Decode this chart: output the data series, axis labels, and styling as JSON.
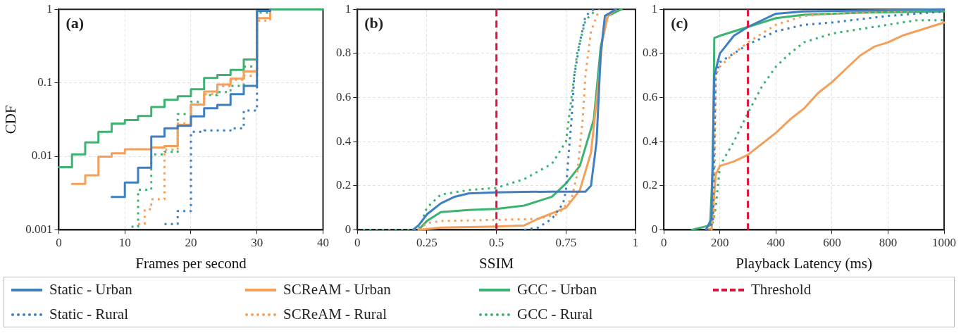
{
  "chart_data": [
    {
      "type": "step",
      "xlabel": "Frames per second",
      "ylabel": "CDF",
      "annotations": [
        "(a)"
      ],
      "log": "y",
      "grid": true,
      "legend": "bottom",
      "xlim": [
        0,
        40
      ],
      "xticks": [
        0,
        10,
        20,
        30,
        40
      ],
      "ylim": [
        0.001,
        1
      ],
      "yticks": [
        0.001,
        0.01,
        0.1,
        1
      ],
      "series": [
        {
          "name": "Static - Urban",
          "color": "#3f7fbf",
          "line_style": "solid",
          "x": [
            8,
            10,
            12,
            14,
            16,
            18,
            20,
            22,
            24,
            26,
            28,
            30,
            32
          ],
          "values": [
            0.0028,
            0.0044,
            0.007,
            0.0185,
            0.024,
            0.026,
            0.035,
            0.045,
            0.05,
            0.07,
            0.091,
            0.95,
            1
          ]
        },
        {
          "name": "Static - Rural",
          "color": "#3f7fbf",
          "line_style": "dotted",
          "x": [
            16,
            18,
            20,
            22,
            26,
            28,
            30,
            32
          ],
          "values": [
            0.0012,
            0.0018,
            0.0215,
            0.0225,
            0.024,
            0.042,
            0.95,
            1
          ]
        },
        {
          "name": "SCReAM - Urban",
          "color": "#f5a05a",
          "line_style": "solid",
          "x": [
            2,
            4,
            6,
            8,
            10,
            14,
            16,
            18,
            20,
            22,
            24,
            26,
            28,
            30,
            32
          ],
          "values": [
            0.0042,
            0.0055,
            0.0099,
            0.011,
            0.0125,
            0.0132,
            0.0138,
            0.0269,
            0.0505,
            0.076,
            0.095,
            0.114,
            0.143,
            0.76,
            1
          ]
        },
        {
          "name": "SCReAM - Rural",
          "color": "#f5a05a",
          "line_style": "dotted",
          "x": [
            12,
            13,
            14,
            16,
            18,
            20,
            22,
            24,
            26,
            28,
            30,
            32
          ],
          "values": [
            0.0012,
            0.0019,
            0.0026,
            0.0123,
            0.028,
            0.05,
            0.07,
            0.09,
            0.11,
            0.125,
            0.7,
            1
          ]
        },
        {
          "name": "GCC - Urban",
          "color": "#3cb371",
          "line_style": "solid",
          "x": [
            0,
            2,
            4,
            6,
            8,
            10,
            12,
            14,
            16,
            18,
            20,
            22,
            24,
            26,
            28,
            30,
            32,
            40
          ],
          "values": [
            0.0071,
            0.0106,
            0.0155,
            0.0215,
            0.0279,
            0.0312,
            0.0353,
            0.0469,
            0.0586,
            0.0655,
            0.0818,
            0.116,
            0.128,
            0.15,
            0.207,
            0.95,
            1,
            1
          ]
        },
        {
          "name": "GCC - Rural",
          "color": "#3cb371",
          "line_style": "dotted",
          "x": [
            11,
            12,
            14,
            16,
            18,
            20,
            22,
            24,
            26,
            28,
            30,
            32
          ],
          "values": [
            0.0011,
            0.0035,
            0.0106,
            0.0115,
            0.0375,
            0.055,
            0.068,
            0.075,
            0.091,
            0.166,
            0.9,
            1
          ]
        }
      ]
    },
    {
      "type": "line",
      "xlabel": "SSIM",
      "annotations": [
        "(b)"
      ],
      "grid": true,
      "xlim": [
        0,
        1
      ],
      "xticks": [
        0,
        0.25,
        0.5,
        0.75,
        1
      ],
      "ylim": [
        0,
        1
      ],
      "yticks": [
        0,
        0.2,
        0.4,
        0.6,
        0.8,
        1
      ],
      "ref_lines": [
        {
          "axis": "x",
          "value": 0.5,
          "label": "Threshold",
          "color": "#dc143c",
          "line_style": "dashed"
        }
      ],
      "series": [
        {
          "color": "#3f7fbf",
          "line_style": "solid",
          "x": [
            0.2,
            0.22,
            0.25,
            0.3,
            0.35,
            0.4,
            0.5,
            0.6,
            0.7,
            0.82,
            0.84,
            0.86,
            0.875,
            0.89,
            0.93
          ],
          "values": [
            0,
            0.02,
            0.07,
            0.12,
            0.15,
            0.165,
            0.17,
            0.172,
            0.173,
            0.173,
            0.2,
            0.4,
            0.8,
            0.97,
            1
          ]
        },
        {
          "color": "#3f7fbf",
          "line_style": "dotted",
          "x": [
            0.6,
            0.65,
            0.7,
            0.74,
            0.75,
            0.76,
            0.77,
            0.78,
            0.8,
            0.82,
            0.85
          ],
          "values": [
            0,
            0.01,
            0.05,
            0.12,
            0.18,
            0.35,
            0.5,
            0.7,
            0.85,
            0.97,
            1
          ]
        },
        {
          "color": "#f5a05a",
          "line_style": "solid",
          "x": [
            0.22,
            0.3,
            0.5,
            0.6,
            0.65,
            0.75,
            0.8,
            0.84,
            0.87,
            0.88,
            0.9,
            0.93
          ],
          "values": [
            0,
            0.01,
            0.015,
            0.02,
            0.05,
            0.1,
            0.18,
            0.35,
            0.7,
            0.85,
            0.97,
            1
          ]
        },
        {
          "color": "#f5a05a",
          "line_style": "dotted",
          "x": [
            0.22,
            0.25,
            0.3,
            0.5,
            0.65,
            0.72,
            0.77,
            0.79,
            0.81,
            0.82,
            0.84,
            0.87
          ],
          "values": [
            0,
            0.03,
            0.04,
            0.045,
            0.05,
            0.07,
            0.14,
            0.25,
            0.5,
            0.7,
            0.9,
            1
          ]
        },
        {
          "color": "#3cb371",
          "line_style": "solid",
          "x": [
            0.22,
            0.25,
            0.3,
            0.4,
            0.5,
            0.6,
            0.7,
            0.75,
            0.8,
            0.85,
            0.875,
            0.9,
            0.95
          ],
          "values": [
            0,
            0.04,
            0.08,
            0.09,
            0.095,
            0.11,
            0.15,
            0.21,
            0.29,
            0.5,
            0.83,
            0.97,
            1
          ]
        },
        {
          "color": "#3cb371",
          "line_style": "dotted",
          "x": [
            0.02,
            0.22,
            0.25,
            0.3,
            0.4,
            0.5,
            0.6,
            0.7,
            0.75,
            0.77,
            0.79,
            0.82,
            0.86
          ],
          "values": [
            0,
            0,
            0.1,
            0.16,
            0.18,
            0.19,
            0.23,
            0.3,
            0.4,
            0.6,
            0.8,
            0.95,
            1
          ]
        }
      ]
    },
    {
      "type": "line",
      "xlabel": "Playback Latency (ms)",
      "annotations": [
        "(c)"
      ],
      "grid": true,
      "xlim": [
        0,
        1000
      ],
      "xticks": [
        0,
        200,
        400,
        600,
        800,
        1000
      ],
      "ylim": [
        0,
        1
      ],
      "yticks": [
        0,
        0.2,
        0.4,
        0.6,
        0.8,
        1
      ],
      "ref_lines": [
        {
          "axis": "x",
          "value": 300,
          "color": "#dc143c",
          "line_style": "dashed"
        }
      ],
      "series": [
        {
          "color": "#3f7fbf",
          "line_style": "solid",
          "x": [
            150,
            170,
            180,
            200,
            250,
            300,
            400,
            500,
            1000
          ],
          "values": [
            0,
            0.05,
            0.7,
            0.8,
            0.88,
            0.92,
            0.98,
            0.99,
            1
          ]
        },
        {
          "color": "#3f7fbf",
          "line_style": "dotted",
          "x": [
            150,
            175,
            185,
            200,
            250,
            300,
            400,
            500,
            600,
            800,
            1000
          ],
          "values": [
            0,
            0.03,
            0.7,
            0.76,
            0.8,
            0.84,
            0.9,
            0.93,
            0.94,
            0.97,
            0.99
          ]
        },
        {
          "color": "#f5a05a",
          "line_style": "solid",
          "x": [
            170,
            185,
            200,
            250,
            300,
            350,
            400,
            450,
            500,
            550,
            600,
            650,
            700,
            750,
            800,
            850,
            900,
            950,
            1000
          ],
          "values": [
            0,
            0.25,
            0.29,
            0.31,
            0.34,
            0.39,
            0.44,
            0.5,
            0.55,
            0.62,
            0.67,
            0.73,
            0.79,
            0.83,
            0.85,
            0.88,
            0.9,
            0.92,
            0.94
          ]
        },
        {
          "color": "#f5a05a",
          "line_style": "dotted",
          "x": [
            160,
            180,
            185,
            200,
            250,
            300,
            400,
            500,
            600,
            800,
            1000
          ],
          "values": [
            0,
            0.05,
            0.7,
            0.74,
            0.8,
            0.85,
            0.93,
            0.97,
            0.98,
            0.99,
            1
          ]
        },
        {
          "color": "#3cb371",
          "line_style": "solid",
          "x": [
            100,
            165,
            175,
            180,
            200,
            250,
            300,
            400,
            500,
            700,
            1000
          ],
          "values": [
            0,
            0.02,
            0.3,
            0.87,
            0.88,
            0.9,
            0.92,
            0.96,
            0.975,
            0.985,
            0.99
          ]
        },
        {
          "color": "#3cb371",
          "line_style": "dotted",
          "x": [
            170,
            185,
            200,
            250,
            300,
            350,
            400,
            450,
            500,
            600,
            700,
            800,
            900,
            1000
          ],
          "values": [
            0,
            0.1,
            0.29,
            0.4,
            0.53,
            0.65,
            0.74,
            0.8,
            0.85,
            0.89,
            0.91,
            0.93,
            0.95,
            0.95
          ]
        }
      ]
    }
  ]
}
